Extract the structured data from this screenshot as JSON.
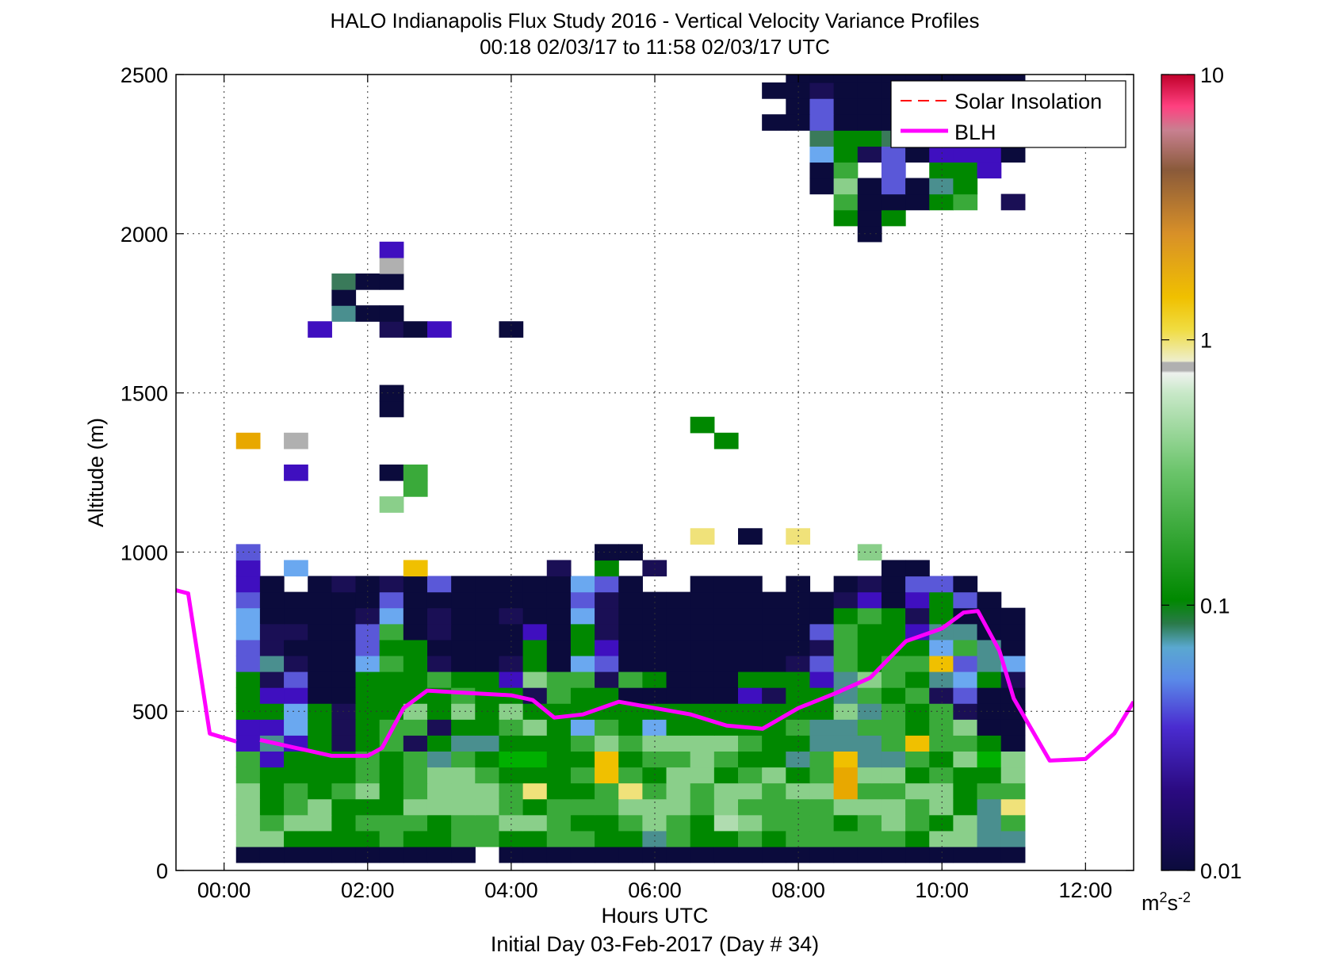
{
  "chart_data": {
    "type": "heatmap",
    "title": "HALO Indianapolis Flux Study 2016 - Vertical Velocity Variance Profiles",
    "subtitle": "00:18 02/03/17 to 11:58 02/03/17  UTC",
    "xlabel": "Hours UTC",
    "xlabel2": "Initial Day 03-Feb-2017 (Day # 34)",
    "ylabel": "Altitude (m)",
    "xlim": [
      -0.67,
      12.67
    ],
    "ylim": [
      0,
      2500
    ],
    "x_ticks": [
      0,
      2,
      4,
      6,
      8,
      10,
      12
    ],
    "x_tick_labels": [
      "00:00",
      "02:00",
      "04:00",
      "06:00",
      "08:00",
      "10:00",
      "12:00"
    ],
    "y_ticks": [
      0,
      500,
      1000,
      1500,
      2000,
      2500
    ],
    "y_tick_labels": [
      "0",
      "500",
      "1000",
      "1500",
      "2000",
      "2500"
    ],
    "grid": true,
    "legend": {
      "location": "top-right",
      "entries": [
        {
          "label": "Solar Insolation",
          "color": "#ff0000",
          "style": "dashed"
        },
        {
          "label": "BLH",
          "color": "#ff00ff",
          "style": "solid"
        }
      ]
    },
    "colorbar": {
      "scale": "log",
      "range": [
        0.01,
        10
      ],
      "tick_labels": [
        "0.01",
        "0.1",
        "1",
        "10"
      ],
      "unit_label": "m",
      "unit_sup1": "2",
      "unit_mid": "s",
      "unit_sup2": "-2"
    },
    "grid_spec": {
      "x_start_hours": 0.333,
      "bin_hours": 0.333,
      "alt_start_m": 50,
      "bin_m": 50
    },
    "rows": [
      {
        "alt": 50,
        "c": "NNNNNNNNNN.NNNNNNNNNNNNNNNNNNNNNN"
      },
      {
        "alt": 100,
        "c": "llGGGGgGGggGGggGGcgGGgGgggggGllcc"
      },
      {
        "alt": 150,
        "c": "lgllGgggGggllgGGglgGmlgggGglgGlcg"
      },
      {
        "alt": 200,
        "c": "lGglGGGllllgGggglllglgggglllglGcy"
      },
      {
        "alt": 250,
        "c": "lGgGglGglllgyGGgyglgllgllOggllGgg"
      },
      {
        "alt": 300,
        "c": "gGGGGgGgllgGGGgYgGllGglGgOllGgGGl"
      },
      {
        "alt": 350,
        "c": "gPGGGgGgcgGDDGGYGgglgGGcgYccgGlDl"
      },
      {
        "alt": 400,
        "c": "PcPGdGgdGccGGGglgllllgGGcccgYggGN"
      },
      {
        "alt": 450,
        "c": "PPsGdGggdGGglGsgGsGGGGGgccggGglNN"
      },
      {
        "alt": 500,
        "c": "GGsGdGGlGlGlGGGGGGGGGGGGGlcgGgdNN"
      },
      {
        "alt": 550,
        "c": "GPPNNGGGGgGGdgGGNNNNNPdGGcgGgdBNN"
      },
      {
        "alt": 600,
        "c": "GdBNNGGGgGGPlggdgGNNNGGGPclgGcsGd"
      },
      {
        "alt": 650,
        "c": "BcdNNsgGdNNdGNsBNNNNNNNdBgGggYBcs"
      },
      {
        "alt": 700,
        "c": "BdNNNBGGNNNNGNGPNNNNNNNNdgGGGsgcN"
      },
      {
        "alt": 750,
        "c": "sddNNBgNdNNNPNGdNNNNNNNNBgGGPccNN"
      },
      {
        "alt": 800,
        "c": "sNNNNdsNdNNdNNsdNNNNNNNNNGgGdGNNN"
      },
      {
        "alt": 850,
        "c": "BNNNNNBNNNNNNNBdNNNNNNNNNdPNPGBN."
      },
      {
        "alt": 900,
        "c": "PN.NdNdNBNNNNNsBN..NNN.N.NdNBBN.."
      },
      {
        "alt": 950,
        "c": "P.s....Y.....d.G.d.........NN...."
      },
      {
        "alt": 1000,
        "c": "B..............NN.........l......"
      },
      {
        "alt": 1050,
        "c": "...................y.N.y........."
      },
      {
        "alt": 1150,
        "c": "......l.........................."
      },
      {
        "alt": 1200,
        "c": ".......g........................."
      },
      {
        "alt": 1250,
        "c": "..P...Ng........................."
      },
      {
        "alt": 1350,
        "c": "O.R.................G............"
      },
      {
        "alt": 1400,
        "c": "...................G............."
      },
      {
        "alt": 1450,
        "c": "......N.........................."
      },
      {
        "alt": 1500,
        "c": "......N.........................."
      },
      {
        "alt": 1700,
        "c": "...P..dNP..N....................."
      },
      {
        "alt": 1750,
        "c": "....cNN.........................."
      },
      {
        "alt": 1800,
        "c": "....N............................"
      },
      {
        "alt": 1850,
        "c": "....tNN.........................."
      },
      {
        "alt": 1900,
        "c": "......R.........................."
      },
      {
        "alt": 1950,
        "c": "......P.........................."
      },
      {
        "alt": 2000,
        "c": "..........................N......"
      },
      {
        "alt": 2050,
        "c": ".........................GNG....."
      },
      {
        "alt": 2100,
        "c": ".........................gNNNGg.d"
      },
      {
        "alt": 2150,
        "c": "........................NlNBNcG.."
      },
      {
        "alt": 2200,
        "c": "........................Ng.B.GGP."
      },
      {
        "alt": 2250,
        "c": "........................sGdBNPPPN"
      },
      {
        "alt": 2300,
        "c": "........................tGGtNNPBB"
      },
      {
        "alt": 2350,
        "c": "......................NNBNNNNNN.."
      },
      {
        "alt": 2400,
        "c": ".......................NBNNNNNNNN"
      },
      {
        "alt": 2450,
        "c": "......................NNdNNNNNNNN"
      },
      {
        "alt": 2500,
        "c": ".......................NNNNNNNNNN"
      },
      {
        "alt": 2550,
        "c": "......................lNdNNNNNNNN"
      }
    ],
    "palette": {
      "N": "#0b0b3c",
      "d": "#1a0f55",
      "P": "#3f0fbf",
      "B": "#5a58d8",
      "s": "#6aa8f0",
      "c": "#4a8f8f",
      "t": "#3a7a5a",
      "G": "#008800",
      "g": "#3aaa3a",
      "l": "#8acf8a",
      "m": "#b0dcb0",
      "w": "#e8f0d8",
      "y": "#f0e27a",
      "Y": "#f0c000",
      "O": "#e8a800",
      "R": "#b0b0b0",
      "D": "#00b000"
    },
    "blh_series": [
      {
        "name": "BLH",
        "x": [
          -0.67,
          -0.5,
          -0.2,
          0.17
        ],
        "y": [
          880,
          870,
          430,
          405
        ]
      },
      {
        "name": "BLH",
        "x": [
          0.5,
          1.0,
          1.5,
          2.0,
          2.2,
          2.5,
          2.83,
          3.2,
          3.6,
          4.0,
          4.3,
          4.6,
          5.0,
          5.5,
          6.0,
          6.5,
          7.0,
          7.5,
          8.0,
          8.5,
          9.0,
          9.5,
          10.0,
          10.3,
          10.5,
          10.8,
          11.0,
          11.5,
          12.0,
          12.4,
          12.67
        ],
        "y": [
          410,
          385,
          360,
          360,
          385,
          510,
          565,
          560,
          555,
          550,
          535,
          480,
          490,
          530,
          510,
          490,
          455,
          445,
          510,
          555,
          605,
          720,
          760,
          810,
          815,
          690,
          540,
          345,
          350,
          430,
          530
        ]
      }
    ]
  }
}
